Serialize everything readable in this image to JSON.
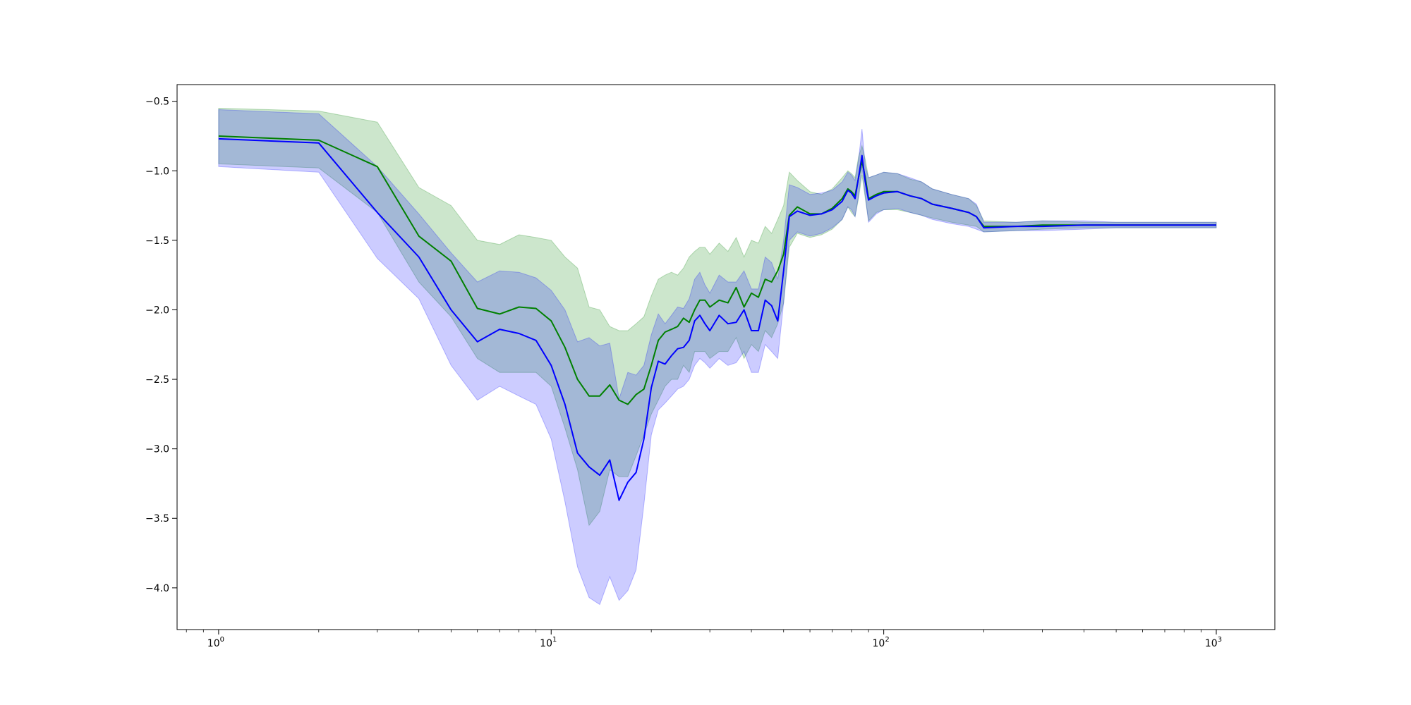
{
  "chart_data": {
    "type": "line",
    "xscale": "log",
    "xlim": [
      0.75,
      1500
    ],
    "ylim": [
      -4.3,
      -0.38
    ],
    "grid": false,
    "legend": "none",
    "x_ticks": [
      {
        "value": 1,
        "base": "10",
        "exp": "0"
      },
      {
        "value": 10,
        "base": "10",
        "exp": "1"
      },
      {
        "value": 100,
        "base": "10",
        "exp": "2"
      },
      {
        "value": 1000,
        "base": "10",
        "exp": "3"
      }
    ],
    "y_ticks": [
      {
        "value": -0.5,
        "label": "−0.5"
      },
      {
        "value": -1.0,
        "label": "−1.0"
      },
      {
        "value": -1.5,
        "label": "−1.5"
      },
      {
        "value": -2.0,
        "label": "−2.0"
      },
      {
        "value": -2.5,
        "label": "−2.5"
      },
      {
        "value": -3.0,
        "label": "−3.0"
      },
      {
        "value": -3.5,
        "label": "−3.5"
      },
      {
        "value": -4.0,
        "label": "−4.0"
      }
    ],
    "series": [
      {
        "color": "#008000",
        "band_color": "#008000",
        "band_opacity": 0.2,
        "x": [
          1,
          2,
          3,
          4,
          5,
          6,
          7,
          8,
          9,
          10,
          11,
          12,
          13,
          14,
          15,
          16,
          17,
          18,
          19,
          20,
          21,
          22,
          23,
          24,
          25,
          26,
          27,
          28,
          29,
          30,
          32,
          34,
          36,
          38,
          40,
          42,
          44,
          46,
          48,
          50,
          52,
          55,
          60,
          65,
          70,
          75,
          78,
          80,
          82,
          84,
          86,
          88,
          90,
          95,
          100,
          110,
          120,
          130,
          140,
          160,
          180,
          190,
          200,
          250,
          300,
          400,
          500,
          700,
          1000
        ],
        "y": [
          -0.75,
          -0.78,
          -0.97,
          -1.47,
          -1.65,
          -1.99,
          -2.03,
          -1.98,
          -1.99,
          -2.08,
          -2.27,
          -2.5,
          -2.62,
          -2.62,
          -2.54,
          -2.65,
          -2.68,
          -2.61,
          -2.57,
          -2.4,
          -2.22,
          -2.16,
          -2.14,
          -2.12,
          -2.06,
          -2.09,
          -2.0,
          -1.93,
          -1.93,
          -1.98,
          -1.93,
          -1.95,
          -1.84,
          -1.98,
          -1.88,
          -1.91,
          -1.78,
          -1.8,
          -1.72,
          -1.6,
          -1.32,
          -1.26,
          -1.31,
          -1.31,
          -1.27,
          -1.2,
          -1.13,
          -1.15,
          -1.18,
          -1.05,
          -0.93,
          -1.05,
          -1.2,
          -1.17,
          -1.15,
          -1.15,
          -1.18,
          -1.2,
          -1.24,
          -1.27,
          -1.3,
          -1.33,
          -1.4,
          -1.4,
          -1.39,
          -1.39,
          -1.39,
          -1.39,
          -1.39
        ],
        "lower": [
          -0.95,
          -0.98,
          -1.3,
          -1.8,
          -2.05,
          -2.35,
          -2.45,
          -2.45,
          -2.45,
          -2.55,
          -2.85,
          -3.15,
          -3.55,
          -3.45,
          -3.15,
          -3.2,
          -3.2,
          -3.05,
          -2.9,
          -2.75,
          -2.65,
          -2.55,
          -2.5,
          -2.5,
          -2.4,
          -2.45,
          -2.3,
          -2.3,
          -2.3,
          -2.35,
          -2.3,
          -2.3,
          -2.2,
          -2.35,
          -2.25,
          -2.3,
          -2.15,
          -2.2,
          -2.1,
          -1.95,
          -1.55,
          -1.45,
          -1.48,
          -1.46,
          -1.42,
          -1.35,
          -1.26,
          -1.3,
          -1.33,
          -1.2,
          -1.03,
          -1.2,
          -1.36,
          -1.3,
          -1.28,
          -1.28,
          -1.3,
          -1.32,
          -1.34,
          -1.37,
          -1.39,
          -1.4,
          -1.44,
          -1.43,
          -1.42,
          -1.41,
          -1.41,
          -1.41,
          -1.41
        ],
        "upper": [
          -0.55,
          -0.57,
          -0.65,
          -1.12,
          -1.25,
          -1.5,
          -1.53,
          -1.46,
          -1.48,
          -1.5,
          -1.62,
          -1.7,
          -1.98,
          -2.0,
          -2.12,
          -2.15,
          -2.15,
          -2.1,
          -2.05,
          -1.9,
          -1.78,
          -1.75,
          -1.73,
          -1.75,
          -1.7,
          -1.62,
          -1.58,
          -1.55,
          -1.55,
          -1.6,
          -1.52,
          -1.58,
          -1.48,
          -1.62,
          -1.5,
          -1.52,
          -1.4,
          -1.45,
          -1.35,
          -1.25,
          -1.01,
          -1.07,
          -1.15,
          -1.17,
          -1.13,
          -1.05,
          -1.0,
          -1.02,
          -1.05,
          -0.9,
          -0.82,
          -0.92,
          -1.05,
          -1.03,
          -1.01,
          -1.02,
          -1.06,
          -1.08,
          -1.13,
          -1.17,
          -1.2,
          -1.25,
          -1.36,
          -1.37,
          -1.36,
          -1.37,
          -1.37,
          -1.37,
          -1.37
        ]
      },
      {
        "color": "#0000ff",
        "band_color": "#0000ff",
        "band_opacity": 0.2,
        "x": [
          1,
          2,
          3,
          4,
          5,
          6,
          7,
          8,
          9,
          10,
          11,
          12,
          13,
          14,
          15,
          16,
          17,
          18,
          19,
          20,
          21,
          22,
          23,
          24,
          25,
          26,
          27,
          28,
          29,
          30,
          32,
          34,
          36,
          38,
          40,
          42,
          44,
          46,
          48,
          50,
          52,
          55,
          60,
          65,
          70,
          75,
          78,
          80,
          82,
          84,
          86,
          88,
          90,
          95,
          100,
          110,
          120,
          130,
          140,
          160,
          180,
          190,
          200,
          250,
          300,
          400,
          500,
          700,
          1000
        ],
        "y": [
          -0.77,
          -0.8,
          -1.3,
          -1.62,
          -2.0,
          -2.23,
          -2.14,
          -2.17,
          -2.22,
          -2.4,
          -2.68,
          -3.03,
          -3.13,
          -3.19,
          -3.08,
          -3.37,
          -3.24,
          -3.17,
          -2.93,
          -2.56,
          -2.37,
          -2.39,
          -2.33,
          -2.28,
          -2.27,
          -2.22,
          -2.08,
          -2.04,
          -2.1,
          -2.15,
          -2.04,
          -2.1,
          -2.09,
          -2.0,
          -2.15,
          -2.15,
          -1.93,
          -1.97,
          -2.08,
          -1.72,
          -1.33,
          -1.29,
          -1.32,
          -1.31,
          -1.28,
          -1.22,
          -1.14,
          -1.16,
          -1.2,
          -1.05,
          -0.89,
          -1.08,
          -1.21,
          -1.18,
          -1.16,
          -1.15,
          -1.18,
          -1.2,
          -1.24,
          -1.27,
          -1.3,
          -1.33,
          -1.41,
          -1.4,
          -1.4,
          -1.39,
          -1.39,
          -1.39,
          -1.39
        ],
        "lower": [
          -0.97,
          -1.01,
          -1.63,
          -1.92,
          -2.4,
          -2.65,
          -2.55,
          -2.62,
          -2.68,
          -2.93,
          -3.38,
          -3.85,
          -4.07,
          -4.12,
          -3.92,
          -4.09,
          -4.02,
          -3.87,
          -3.4,
          -2.9,
          -2.72,
          -2.67,
          -2.62,
          -2.57,
          -2.55,
          -2.5,
          -2.4,
          -2.35,
          -2.38,
          -2.42,
          -2.35,
          -2.4,
          -2.38,
          -2.3,
          -2.45,
          -2.45,
          -2.25,
          -2.3,
          -2.35,
          -1.95,
          -1.5,
          -1.44,
          -1.47,
          -1.45,
          -1.41,
          -1.35,
          -1.26,
          -1.28,
          -1.33,
          -1.18,
          -0.97,
          -1.18,
          -1.37,
          -1.31,
          -1.28,
          -1.27,
          -1.3,
          -1.32,
          -1.35,
          -1.38,
          -1.4,
          -1.42,
          -1.44,
          -1.43,
          -1.43,
          -1.42,
          -1.41,
          -1.41,
          -1.41
        ],
        "upper": [
          -0.56,
          -0.59,
          -0.97,
          -1.31,
          -1.59,
          -1.8,
          -1.72,
          -1.73,
          -1.77,
          -1.86,
          -2.0,
          -2.23,
          -2.2,
          -2.26,
          -2.24,
          -2.64,
          -2.45,
          -2.47,
          -2.4,
          -2.18,
          -2.03,
          -2.1,
          -2.04,
          -1.98,
          -1.99,
          -1.92,
          -1.78,
          -1.73,
          -1.82,
          -1.88,
          -1.75,
          -1.8,
          -1.8,
          -1.72,
          -1.85,
          -1.85,
          -1.62,
          -1.66,
          -1.78,
          -1.5,
          -1.1,
          -1.12,
          -1.17,
          -1.16,
          -1.14,
          -1.08,
          -1.01,
          -1.03,
          -1.07,
          -0.92,
          -0.7,
          -0.97,
          -1.05,
          -1.03,
          -1.01,
          -1.02,
          -1.05,
          -1.08,
          -1.13,
          -1.17,
          -1.2,
          -1.24,
          -1.37,
          -1.37,
          -1.36,
          -1.36,
          -1.37,
          -1.37,
          -1.37
        ]
      }
    ]
  }
}
